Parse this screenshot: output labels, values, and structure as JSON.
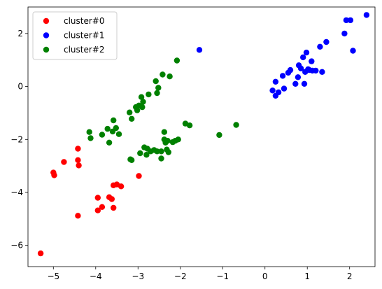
{
  "chart_data": {
    "type": "scatter",
    "title": "",
    "xlabel": "",
    "ylabel": "",
    "xlim": [
      -5.6,
      2.6
    ],
    "ylim": [
      -6.8,
      3.0
    ],
    "xticks": [
      -5,
      -4,
      -3,
      -2,
      -1,
      0,
      1,
      2
    ],
    "yticks": [
      -6,
      -4,
      -2,
      0,
      2
    ],
    "xtick_labels": [
      "−5",
      "−4",
      "−3",
      "−2",
      "−1",
      "0",
      "1",
      "2"
    ],
    "ytick_labels": [
      "−6",
      "−4",
      "−2",
      "0",
      "2"
    ],
    "grid": false,
    "legend_position": "top-left",
    "series": [
      {
        "name": "cluster#0",
        "color": "#ff0000",
        "points": [
          [
            -5.3,
            -6.3
          ],
          [
            -5.0,
            -3.25
          ],
          [
            -4.98,
            -3.35
          ],
          [
            -4.75,
            -2.85
          ],
          [
            -4.42,
            -2.35
          ],
          [
            -4.42,
            -2.78
          ],
          [
            -4.4,
            -2.98
          ],
          [
            -4.42,
            -4.88
          ],
          [
            -3.95,
            -4.2
          ],
          [
            -3.95,
            -4.68
          ],
          [
            -3.85,
            -4.55
          ],
          [
            -3.68,
            -4.18
          ],
          [
            -3.62,
            -4.25
          ],
          [
            -3.58,
            -3.73
          ],
          [
            -3.5,
            -3.7
          ],
          [
            -3.4,
            -3.77
          ],
          [
            -3.58,
            -4.58
          ],
          [
            -2.98,
            -3.38
          ]
        ]
      },
      {
        "name": "cluster#1",
        "color": "#0000ff",
        "points": [
          [
            -1.55,
            1.38
          ],
          [
            0.18,
            -0.15
          ],
          [
            0.25,
            0.18
          ],
          [
            0.25,
            -0.35
          ],
          [
            0.32,
            -0.22
          ],
          [
            0.42,
            0.4
          ],
          [
            0.45,
            -0.08
          ],
          [
            0.55,
            0.52
          ],
          [
            0.6,
            0.62
          ],
          [
            0.72,
            0.1
          ],
          [
            0.78,
            0.35
          ],
          [
            0.8,
            0.8
          ],
          [
            0.85,
            0.68
          ],
          [
            0.9,
            1.1
          ],
          [
            0.93,
            0.1
          ],
          [
            0.95,
            0.55
          ],
          [
            0.98,
            1.28
          ],
          [
            1.02,
            0.65
          ],
          [
            1.05,
            0.62
          ],
          [
            1.1,
            0.95
          ],
          [
            1.12,
            0.6
          ],
          [
            1.2,
            0.6
          ],
          [
            1.3,
            1.5
          ],
          [
            1.35,
            0.55
          ],
          [
            1.45,
            1.68
          ],
          [
            1.88,
            2.0
          ],
          [
            1.92,
            2.5
          ],
          [
            2.02,
            2.5
          ],
          [
            2.08,
            1.35
          ],
          [
            2.4,
            2.7
          ]
        ]
      },
      {
        "name": "cluster#2",
        "color": "#008000",
        "points": [
          [
            -4.15,
            -1.72
          ],
          [
            -4.12,
            -1.95
          ],
          [
            -3.85,
            -1.82
          ],
          [
            -3.72,
            -1.6
          ],
          [
            -3.68,
            -2.12
          ],
          [
            -3.6,
            -1.7
          ],
          [
            -3.58,
            -1.28
          ],
          [
            -3.52,
            -1.57
          ],
          [
            -3.45,
            -1.8
          ],
          [
            -3.2,
            -0.98
          ],
          [
            -3.18,
            -2.75
          ],
          [
            -3.15,
            -2.78
          ],
          [
            -3.15,
            -1.22
          ],
          [
            -3.05,
            -0.78
          ],
          [
            -3.02,
            -0.9
          ],
          [
            -2.98,
            -0.72
          ],
          [
            -2.95,
            -2.52
          ],
          [
            -2.92,
            -0.4
          ],
          [
            -2.9,
            -0.78
          ],
          [
            -2.88,
            -0.58
          ],
          [
            -2.85,
            -2.3
          ],
          [
            -2.8,
            -2.58
          ],
          [
            -2.78,
            -2.35
          ],
          [
            -2.75,
            -0.3
          ],
          [
            -2.7,
            -2.45
          ],
          [
            -2.62,
            -2.4
          ],
          [
            -2.55,
            -2.45
          ],
          [
            -2.58,
            0.2
          ],
          [
            -2.55,
            -0.25
          ],
          [
            -2.52,
            -0.05
          ],
          [
            -2.45,
            -2.45
          ],
          [
            -2.45,
            -2.72
          ],
          [
            -2.42,
            0.45
          ],
          [
            -2.38,
            -2.0
          ],
          [
            -2.38,
            -1.72
          ],
          [
            -2.35,
            -2.12
          ],
          [
            -2.32,
            -2.38
          ],
          [
            -2.3,
            -2.05
          ],
          [
            -2.28,
            -2.48
          ],
          [
            -2.25,
            0.38
          ],
          [
            -2.18,
            -2.1
          ],
          [
            -2.12,
            -2.05
          ],
          [
            -2.08,
            0.98
          ],
          [
            -2.05,
            -2.0
          ],
          [
            -1.88,
            -1.4
          ],
          [
            -1.78,
            -1.47
          ],
          [
            -1.08,
            -1.83
          ],
          [
            -0.68,
            -1.45
          ]
        ]
      }
    ]
  }
}
